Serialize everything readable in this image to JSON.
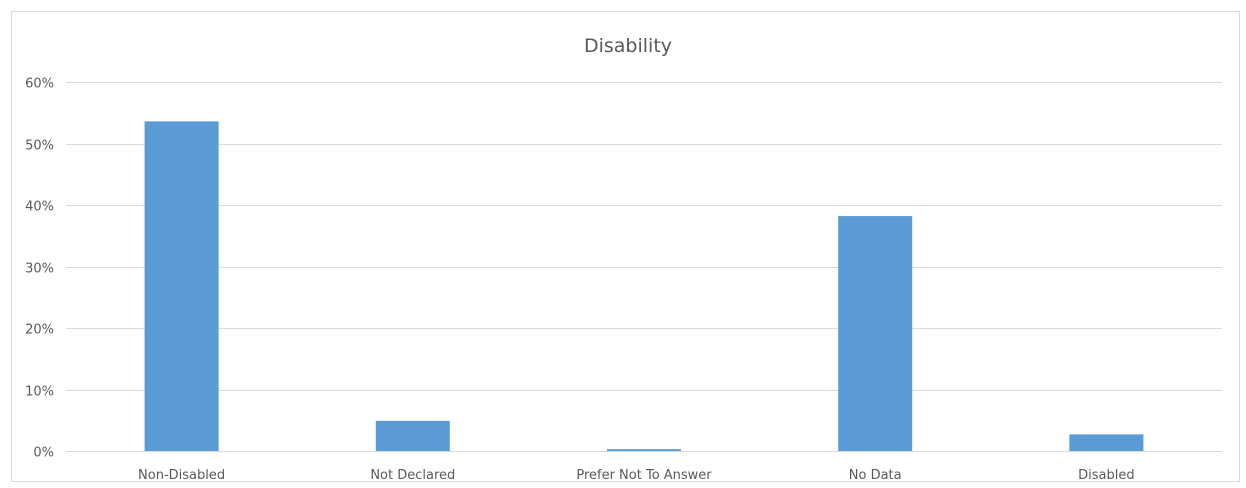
{
  "chart_data": {
    "type": "bar",
    "title": "Disability",
    "xlabel": "",
    "ylabel": "",
    "categories": [
      "Non-Disabled",
      "Not Declared",
      "Prefer Not To Answer",
      "No Data",
      "Disabled"
    ],
    "values": [
      53.6,
      4.9,
      0.3,
      38.2,
      2.7
    ],
    "ylim": [
      0,
      60
    ],
    "yticks": [
      0,
      10,
      20,
      30,
      40,
      50,
      60
    ],
    "ytick_labels": [
      "0%",
      "10%",
      "20%",
      "30%",
      "40%",
      "50%",
      "60%"
    ],
    "grid": true,
    "legend": "none",
    "colors": {
      "bar": "#5b9bd5",
      "grid": "#d9d9d9",
      "text": "#595959"
    }
  }
}
